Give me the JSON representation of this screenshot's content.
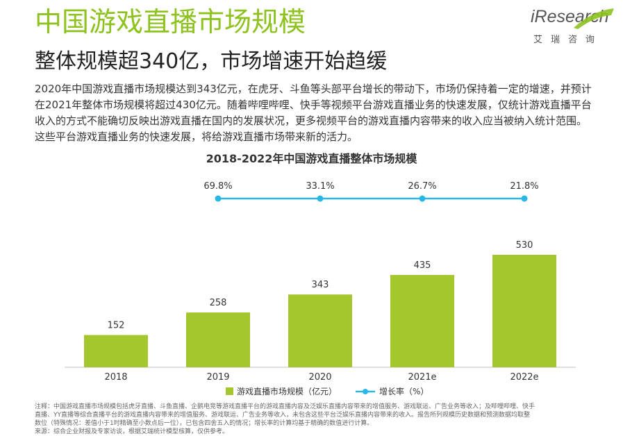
{
  "header": {
    "title": "中国游戏直播市场规模",
    "subtitle": "整体规模超340亿，市场增速开始趋缓",
    "intro_lines": [
      "2020年中国游戏直播市场规模达到343亿元，在虎牙、斗鱼等头部平台增长的带动下，市场仍保持着一定的增速，并预计",
      "在2021年整体市场规模将超过430亿元。随着哔哩哔哩、快手等视频平台游戏直播业务的快速发展，仅统计游戏直播平台",
      "收入的方式不能确切反映出游戏直播在国内的发展状况，更多视频平台的游戏直播内容带来的收入应当被纳入统计范围。",
      "这些平台游戏直播业务的快速发展，将给游戏直播市场带来新的活力。"
    ]
  },
  "logo": {
    "name": "iResearch",
    "sub": "艾瑞咨询"
  },
  "colors": {
    "title_green": "#8dc21f",
    "bar": "#a3c72c",
    "line": "#29b7e8"
  },
  "chart_data": {
    "type": "bar",
    "title": "2018-2022年中国游戏直播整体市场规模",
    "categories": [
      "2018",
      "2019",
      "2020",
      "2021e",
      "2022e"
    ],
    "series": [
      {
        "name": "游戏直播市场规模（亿元）",
        "type": "bar",
        "values": [
          152,
          258,
          343,
          435,
          530
        ],
        "labels": [
          "152",
          "258",
          "343",
          "435",
          "530"
        ]
      },
      {
        "name": "增长率（%）",
        "type": "line",
        "values": [
          null,
          69.8,
          33.1,
          26.7,
          21.8
        ],
        "labels": [
          "",
          "69.8%",
          "33.1%",
          "26.7%",
          "21.8%"
        ]
      }
    ],
    "legend_position": "bottom",
    "grid": false
  },
  "notes": {
    "lines": [
      "注释：中国游戏直播市场规模包括虎牙直播、斗鱼直播、企鹅电竞等游戏直播平台的游戏直播内容及泛娱乐直播内容带来的增值服务、游戏联运、广告业务等收入；及哔哩哔哩、快手",
      "直播、YY直播等综合直播平台的游戏直播内容带来的增值服务、游戏联运、广告业务等收入，未包含这些平台泛娱乐直播内容带来的收入。报告所列规模历史数据和预测数据均取整",
      "数位（特殊情况：差值小于1时精确至小数点后一位），已包含四舍五入的情况；增长率的计算均基于精确的数值进行计算。",
      "来源：综合企业财报及专家访谈，根据艾瑞统计模型核算，仅供参考。"
    ]
  }
}
